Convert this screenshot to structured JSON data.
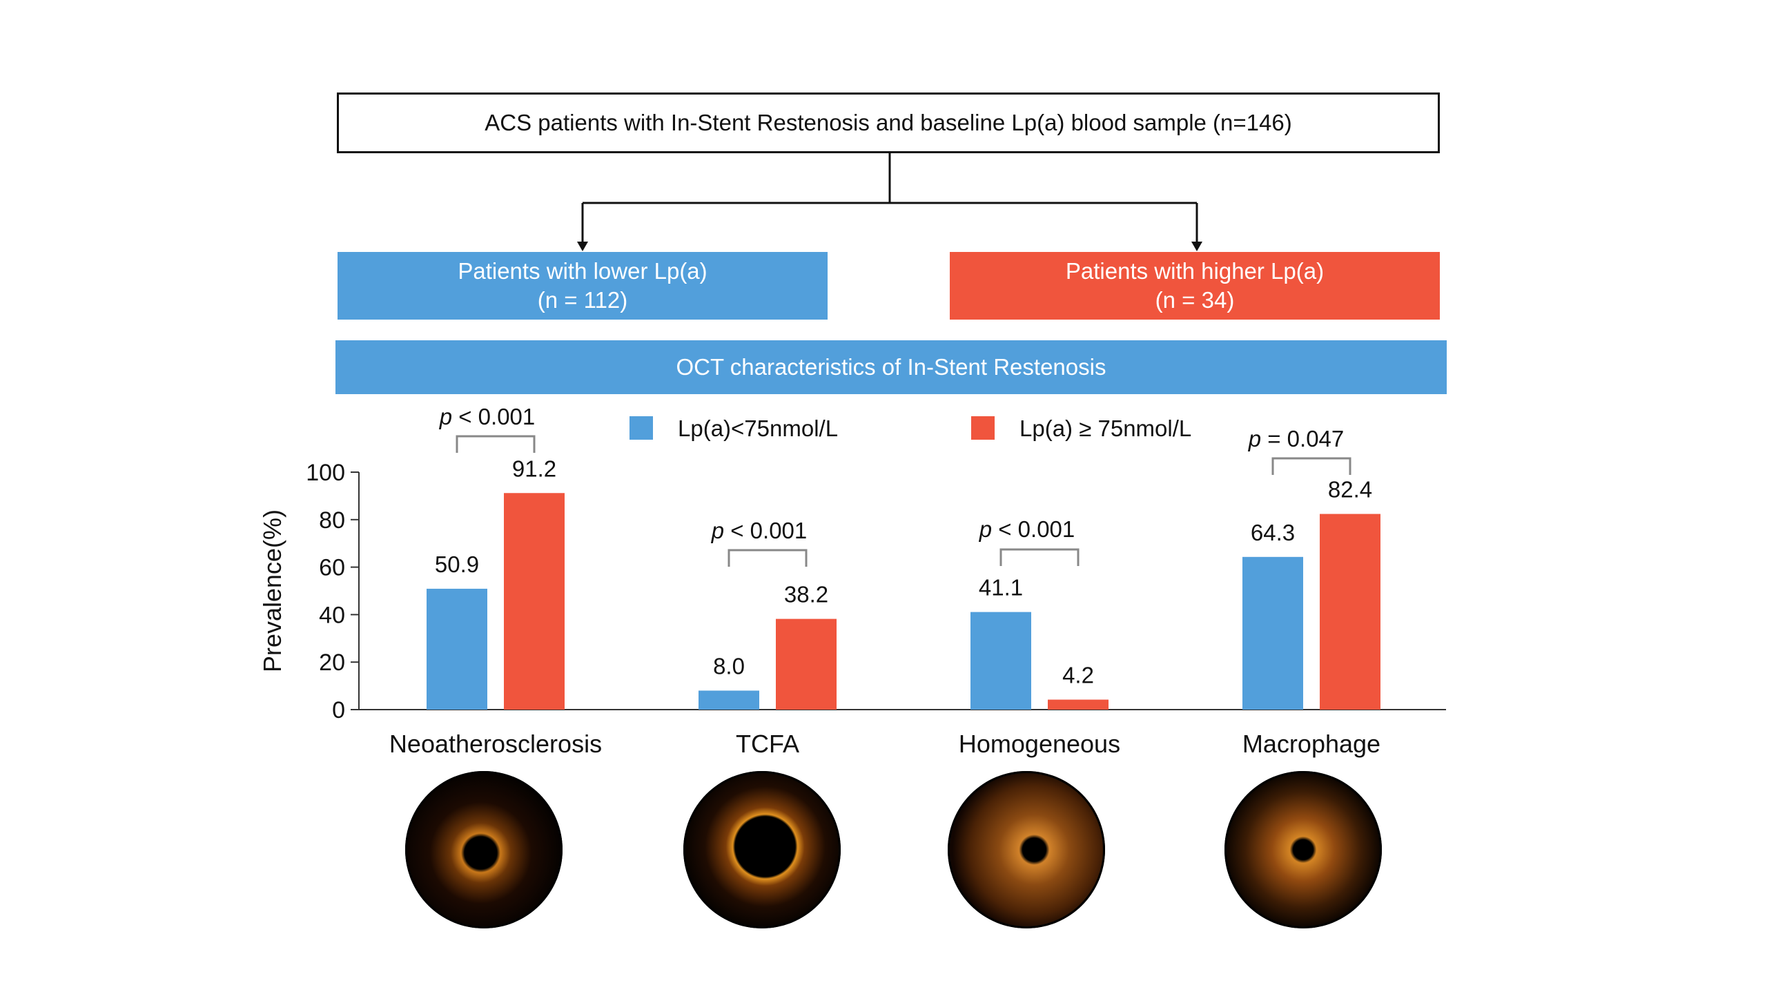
{
  "flow": {
    "top": "ACS patients with In-Stent Restenosis and baseline Lp(a) blood sample (n=146)",
    "low_title": "Patients with lower Lp(a)",
    "low_n": "(n = 112)",
    "high_title": "Patients with higher Lp(a)",
    "high_n": "(n = 34)",
    "banner": "OCT characteristics of In-Stent Restenosis"
  },
  "colors": {
    "blue": "#529fdb",
    "red": "#f0553d"
  },
  "chart_data": {
    "type": "bar",
    "title": "OCT characteristics of In-Stent Restenosis",
    "ylabel": "Prevalence(%)",
    "xlabel": "",
    "ylim": [
      0,
      100
    ],
    "yticks": [
      0,
      20,
      40,
      60,
      80,
      100
    ],
    "categories": [
      "Neoatherosclerosis",
      "TCFA",
      "Homogeneous",
      "Macrophage"
    ],
    "series": [
      {
        "name": "Lp(a)<75nmol/L",
        "color": "#529fdb",
        "values": [
          50.9,
          8.0,
          41.1,
          64.3
        ],
        "labels": [
          "50.9",
          "8.0",
          "41.1",
          "64.3"
        ]
      },
      {
        "name": "Lp(a) ≥ 75nmol/L",
        "color": "#f0553d",
        "values": [
          91.2,
          38.2,
          4.2,
          82.4
        ],
        "labels": [
          "91.2",
          "38.2",
          "4.2",
          "82.4"
        ]
      }
    ],
    "pvalues": [
      {
        "p": "p",
        "rest": " < 0.001"
      },
      {
        "p": "p",
        "rest": " < 0.001"
      },
      {
        "p": "p",
        "rest": " < 0.001"
      },
      {
        "p": "p",
        "rest": " = 0.047"
      }
    ],
    "legend_position": "top"
  },
  "oct_images": [
    "Neoatherosclerosis-oct-icon",
    "TCFA-oct-icon",
    "Homogeneous-oct-icon",
    "Macrophage-oct-icon"
  ]
}
